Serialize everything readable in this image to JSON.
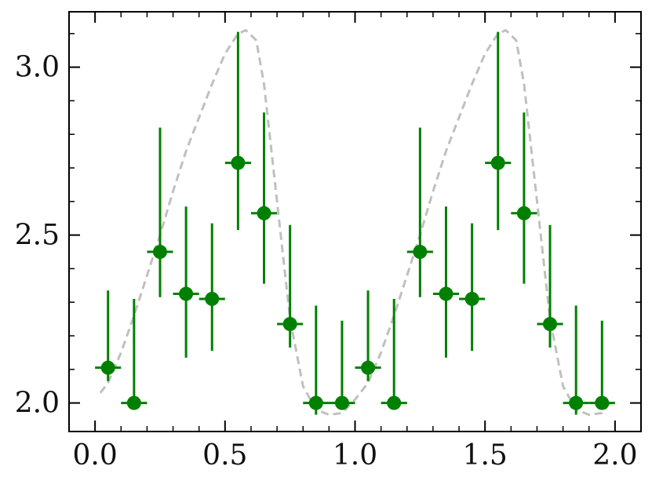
{
  "chart_data": {
    "type": "scatter",
    "title": "",
    "xlabel": "",
    "ylabel": "",
    "xlim": [
      -0.1,
      2.1
    ],
    "ylim": [
      1.915,
      3.165
    ],
    "x_ticks": [
      0.0,
      0.5,
      1.0,
      1.5,
      2.0
    ],
    "x_tick_labels": [
      "0.0",
      "0.5",
      "1.0",
      "1.5",
      "2.0"
    ],
    "y_ticks": [
      2.0,
      2.5,
      3.0
    ],
    "y_tick_labels": [
      "2.0",
      "2.5",
      "3.0"
    ],
    "grid": false,
    "legend": "none",
    "series": [
      {
        "kind": "errorbar",
        "color": "#008000",
        "x": [
          0.05,
          0.15,
          0.25,
          0.35,
          0.45,
          0.55,
          0.65,
          0.75,
          0.85,
          0.95,
          1.05,
          1.15,
          1.25,
          1.35,
          1.45,
          1.55,
          1.65,
          1.75,
          1.85,
          1.95
        ],
        "y": [
          2.105,
          2.0,
          2.45,
          2.325,
          2.31,
          2.715,
          2.565,
          2.235,
          2.0,
          2.0,
          2.105,
          2.0,
          2.45,
          2.325,
          2.31,
          2.715,
          2.565,
          2.235,
          2.0,
          2.0
        ],
        "xerr": 0.05,
        "yerr_low": [
          0.04,
          0.0,
          0.135,
          0.19,
          0.155,
          0.2,
          0.21,
          0.07,
          0.035,
          0.0,
          0.04,
          0.0,
          0.135,
          0.19,
          0.155,
          0.2,
          0.21,
          0.07,
          0.035,
          0.0
        ],
        "yerr_high": [
          0.23,
          0.31,
          0.37,
          0.26,
          0.225,
          0.39,
          0.3,
          0.295,
          0.29,
          0.245,
          0.23,
          0.31,
          0.37,
          0.26,
          0.225,
          0.39,
          0.3,
          0.295,
          0.29,
          0.245
        ]
      },
      {
        "kind": "line",
        "style": "dashed",
        "color": "#c0c0c0",
        "x": [
          0.02,
          0.05,
          0.1,
          0.15,
          0.2,
          0.25,
          0.3,
          0.35,
          0.4,
          0.45,
          0.5,
          0.55,
          0.58,
          0.62,
          0.65,
          0.7,
          0.75,
          0.8,
          0.85,
          0.9,
          0.95,
          1.0,
          1.05,
          1.1,
          1.15,
          1.2,
          1.25,
          1.3,
          1.35,
          1.4,
          1.45,
          1.5,
          1.55,
          1.58,
          1.62,
          1.65,
          1.7,
          1.75,
          1.8,
          1.85,
          1.9,
          1.95,
          1.98
        ],
        "y": [
          2.03,
          2.06,
          2.15,
          2.26,
          2.38,
          2.5,
          2.63,
          2.75,
          2.85,
          2.95,
          3.04,
          3.1,
          3.11,
          3.08,
          2.95,
          2.6,
          2.25,
          2.05,
          1.98,
          1.965,
          1.97,
          2.01,
          2.06,
          2.15,
          2.26,
          2.38,
          2.5,
          2.63,
          2.75,
          2.85,
          2.95,
          3.04,
          3.1,
          3.11,
          3.08,
          2.95,
          2.6,
          2.25,
          2.05,
          1.98,
          1.965,
          1.97,
          2.0
        ]
      }
    ]
  }
}
